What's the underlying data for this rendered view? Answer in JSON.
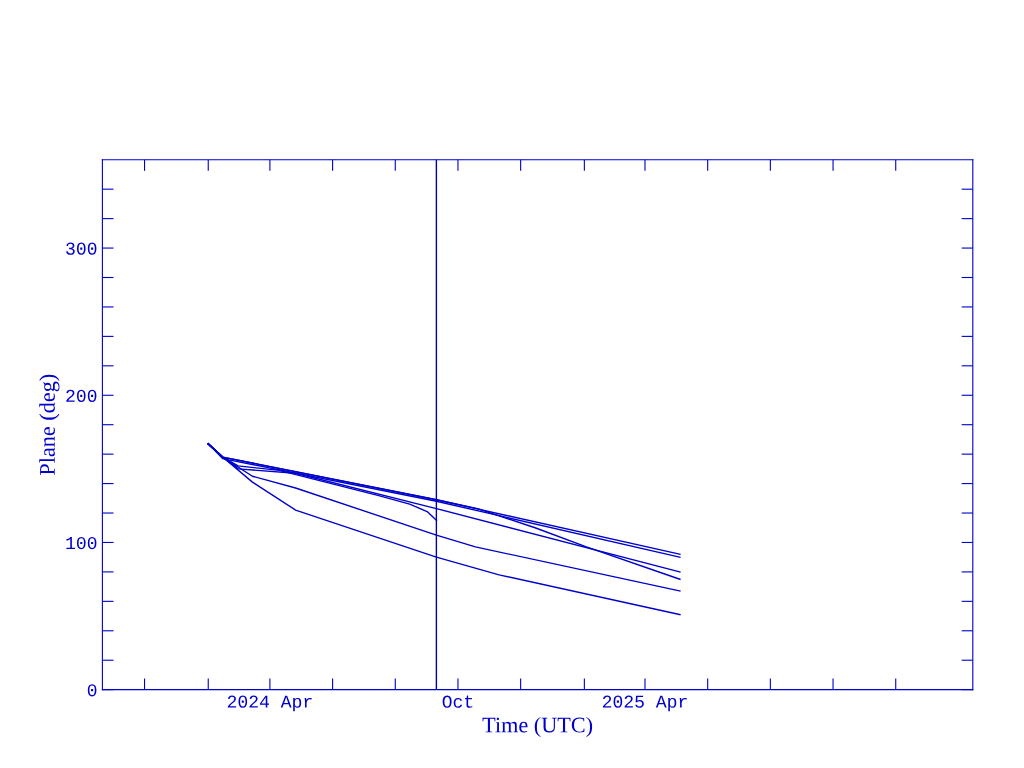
{
  "chart_data": {
    "type": "line",
    "xlabel": "Time (UTC)",
    "ylabel": "Plane (deg)",
    "xlim": [
      "2023-10-21",
      "2026-02-14"
    ],
    "xticks": [
      {
        "value": "2023-12-01",
        "label": null
      },
      {
        "value": "2024-02-01",
        "label": null
      },
      {
        "value": "2024-04-01",
        "label": "2024 Apr"
      },
      {
        "value": "2024-06-01",
        "label": null
      },
      {
        "value": "2024-08-01",
        "label": null
      },
      {
        "value": "2024-10-01",
        "label": "Oct"
      },
      {
        "value": "2024-12-01",
        "label": null
      },
      {
        "value": "2025-02-01",
        "label": null
      },
      {
        "value": "2025-04-01",
        "label": "2025 Apr"
      },
      {
        "value": "2025-06-01",
        "label": null
      },
      {
        "value": "2025-08-01",
        "label": null
      },
      {
        "value": "2025-10-01",
        "label": null
      },
      {
        "value": "2025-12-01",
        "label": null
      }
    ],
    "ylim": [
      0,
      360
    ],
    "yticks": [
      0,
      {
        "value": 20,
        "label": null
      },
      {
        "value": 40,
        "label": null
      },
      {
        "value": 60,
        "label": null
      },
      {
        "value": 80,
        "label": null
      },
      100,
      {
        "value": 120,
        "label": null
      },
      {
        "value": 140,
        "label": null
      },
      {
        "value": 160,
        "label": null
      },
      {
        "value": 180,
        "label": null
      },
      200,
      {
        "value": 220,
        "label": null
      },
      {
        "value": 240,
        "label": null
      },
      {
        "value": 260,
        "label": null
      },
      {
        "value": 280,
        "label": null
      },
      300,
      {
        "value": 320,
        "label": null
      },
      {
        "value": 340,
        "label": null
      }
    ],
    "grid": false,
    "marker": "none",
    "line_style": "solid",
    "ref_lines": [
      {
        "axis": "x",
        "value": "2024-09-10",
        "label": null,
        "color": "#0000aa"
      }
    ],
    "series": [
      {
        "color": "#0000cc",
        "x": [
          "2024-02-01",
          "2024-02-15",
          "2024-09-10",
          "2025-05-05"
        ],
        "values": [
          167,
          158,
          129,
          92
        ]
      },
      {
        "color": "#0000cc",
        "x": [
          "2024-02-01",
          "2024-02-15",
          "2024-09-10",
          "2025-05-05"
        ],
        "values": [
          167,
          157,
          128,
          90
        ]
      },
      {
        "color": "#0000cc",
        "x": [
          "2024-02-01",
          "2024-02-15",
          "2024-09-10",
          "2024-10-20",
          "2024-12-15",
          "2025-02-03",
          "2025-05-05"
        ],
        "values": [
          167,
          158,
          129,
          123,
          110,
          97,
          75
        ]
      },
      {
        "color": "#0000cc",
        "x": [
          "2024-02-01",
          "2024-02-15",
          "2024-03-01",
          "2024-04-26",
          "2024-09-10",
          "2025-05-05"
        ],
        "values": [
          167,
          158,
          150,
          147,
          123,
          80
        ]
      },
      {
        "color": "#0000cc",
        "x": [
          "2024-02-01",
          "2024-02-15",
          "2024-03-01",
          "2024-04-10",
          "2024-07-15",
          "2024-08-15",
          "2024-09-01",
          "2024-09-10"
        ],
        "values": [
          167,
          158,
          152,
          149,
          132,
          126,
          121,
          115
        ]
      },
      {
        "color": "#0000cc",
        "x": [
          "2024-02-01",
          "2024-02-15",
          "2024-03-15",
          "2024-04-26",
          "2024-09-10",
          "2024-10-18",
          "2025-05-05"
        ],
        "values": [
          167,
          158,
          145,
          137,
          105,
          97,
          67
        ]
      },
      {
        "color": "#0000cc",
        "x": [
          "2024-02-01",
          "2024-02-15",
          "2024-03-15",
          "2024-04-26",
          "2024-09-10",
          "2024-11-10",
          "2025-05-05"
        ],
        "values": [
          167,
          158,
          141,
          122,
          90,
          78,
          51
        ]
      }
    ]
  }
}
